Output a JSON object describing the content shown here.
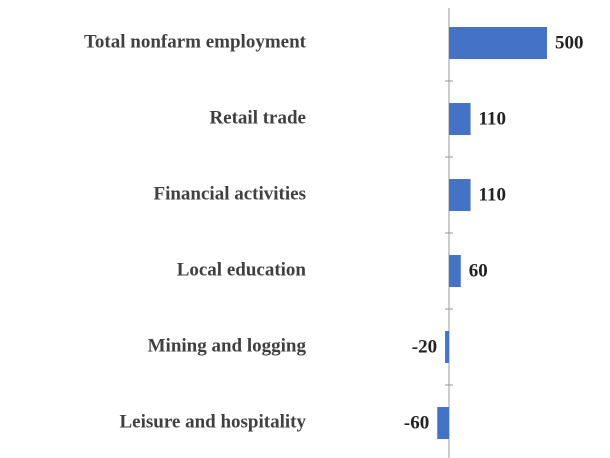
{
  "chart_data": {
    "type": "bar",
    "orientation": "horizontal",
    "categories": [
      "Total nonfarm employment",
      "Retail trade",
      "Financial activities",
      "Local education",
      "Mining and logging",
      "Leisure and hospitality"
    ],
    "values": [
      500,
      110,
      110,
      60,
      -20,
      -60
    ],
    "color": "#4472c4"
  }
}
